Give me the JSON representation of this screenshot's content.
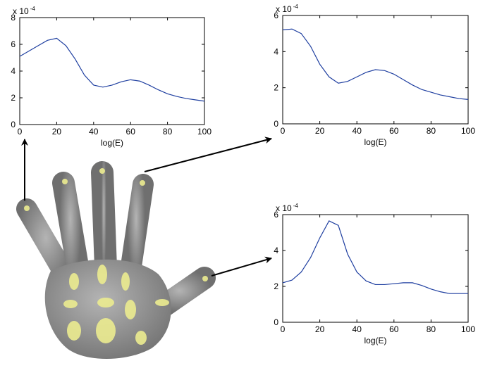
{
  "chart_data": [
    {
      "type": "line",
      "multiplier": {
        "base": "x 10",
        "exponent": "-4"
      },
      "xlabel": "log(E)",
      "x": [
        0,
        5,
        10,
        15,
        20,
        25,
        30,
        35,
        40,
        45,
        50,
        55,
        60,
        65,
        70,
        75,
        80,
        85,
        90,
        95,
        100
      ],
      "series": [
        {
          "color": "#1f3fa0",
          "values": [
            5.1,
            5.5,
            5.9,
            6.3,
            6.45,
            5.9,
            4.9,
            3.7,
            2.95,
            2.8,
            2.95,
            3.2,
            3.35,
            3.25,
            2.95,
            2.6,
            2.3,
            2.1,
            1.95,
            1.85,
            1.75
          ]
        }
      ],
      "xlim": [
        0,
        100
      ],
      "xticks": [
        0,
        20,
        40,
        60,
        80,
        100
      ],
      "ylim": [
        0,
        8
      ],
      "yticks": [
        0,
        2,
        4,
        6,
        8
      ]
    },
    {
      "type": "line",
      "multiplier": {
        "base": "x 10",
        "exponent": "-4"
      },
      "xlabel": "log(E)",
      "x": [
        0,
        5,
        10,
        15,
        20,
        25,
        30,
        35,
        40,
        45,
        50,
        55,
        60,
        65,
        70,
        75,
        80,
        85,
        90,
        95,
        100
      ],
      "series": [
        {
          "color": "#1f3fa0",
          "values": [
            5.2,
            5.25,
            5.0,
            4.3,
            3.3,
            2.6,
            2.25,
            2.35,
            2.6,
            2.85,
            3.0,
            2.95,
            2.75,
            2.45,
            2.15,
            1.9,
            1.75,
            1.6,
            1.5,
            1.4,
            1.35
          ]
        }
      ],
      "xlim": [
        0,
        100
      ],
      "xticks": [
        0,
        20,
        40,
        60,
        80,
        100
      ],
      "ylim": [
        0,
        6
      ],
      "yticks": [
        0,
        2,
        4,
        6
      ]
    },
    {
      "type": "line",
      "multiplier": {
        "base": "x 10",
        "exponent": "-4"
      },
      "xlabel": "log(E)",
      "x": [
        0,
        5,
        10,
        15,
        20,
        25,
        30,
        35,
        40,
        45,
        50,
        55,
        60,
        65,
        70,
        75,
        80,
        85,
        90,
        95,
        100
      ],
      "series": [
        {
          "color": "#1f3fa0",
          "values": [
            2.2,
            2.35,
            2.8,
            3.6,
            4.7,
            5.65,
            5.4,
            3.8,
            2.8,
            2.3,
            2.1,
            2.1,
            2.15,
            2.2,
            2.2,
            2.05,
            1.85,
            1.7,
            1.6,
            1.6,
            1.6
          ]
        }
      ],
      "xlim": [
        0,
        100
      ],
      "xticks": [
        0,
        20,
        40,
        60,
        80,
        100
      ],
      "ylim": [
        0,
        6
      ],
      "yticks": [
        0,
        2,
        4,
        6
      ]
    }
  ]
}
